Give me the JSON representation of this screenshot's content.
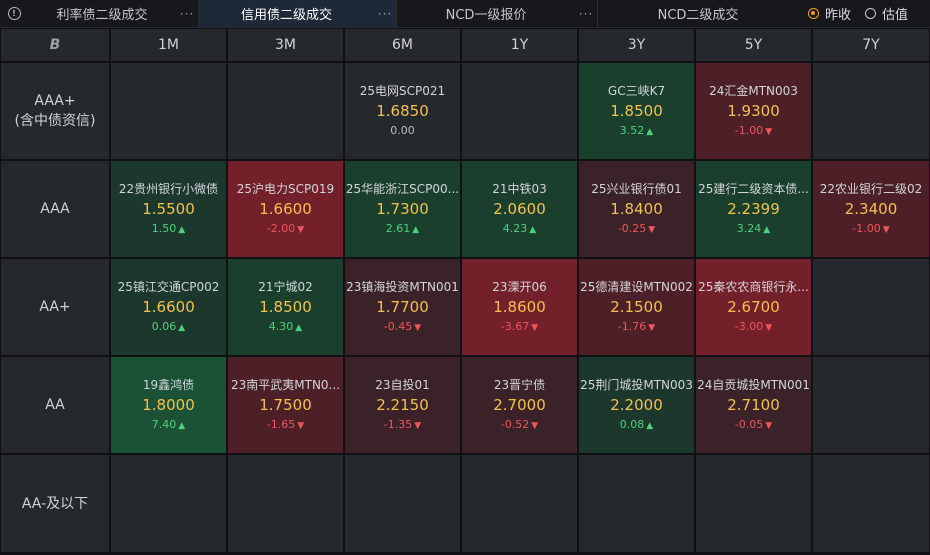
{
  "tabs": [
    {
      "label": "利率债二级成交",
      "more": "···",
      "active": false
    },
    {
      "label": "信用债二级成交",
      "more": "···",
      "active": true
    },
    {
      "label": "NCD一级报价",
      "more": "···",
      "active": false
    },
    {
      "label": "NCD二级成交",
      "more": "",
      "active": false
    }
  ],
  "radio": {
    "option1": "昨收",
    "option2": "估值",
    "selected": "昨收"
  },
  "grid": {
    "corner": "B",
    "columns": [
      "1M",
      "3M",
      "6M",
      "1Y",
      "3Y",
      "5Y",
      "7Y"
    ],
    "rows": [
      {
        "label": "AAA+\n(含中债资信)",
        "cells": [
          null,
          null,
          {
            "name": "25电网SCP021",
            "yield": "1.6850",
            "change": "0.00",
            "dir": "flat",
            "tone": "neutral"
          },
          null,
          {
            "name": "GC三峡K7",
            "yield": "1.8500",
            "change": "3.52",
            "dir": "up",
            "tone": "up"
          },
          {
            "name": "24汇金MTN003",
            "yield": "1.9300",
            "change": "-1.00",
            "dir": "down",
            "tone": "dn"
          },
          null
        ]
      },
      {
        "label": "AAA",
        "cells": [
          {
            "name": "22贵州银行小微债",
            "yield": "1.5500",
            "change": "1.50",
            "dir": "up",
            "tone": "up-mild"
          },
          {
            "name": "25沪电力SCP019",
            "yield": "1.6600",
            "change": "-2.00",
            "dir": "down",
            "tone": "dn-strong"
          },
          {
            "name": "25华能浙江SCP00...",
            "yield": "1.7300",
            "change": "2.61",
            "dir": "up",
            "tone": "up"
          },
          {
            "name": "21中铁03",
            "yield": "2.0600",
            "change": "4.23",
            "dir": "up",
            "tone": "up"
          },
          {
            "name": "25兴业银行债01",
            "yield": "1.8400",
            "change": "-0.25",
            "dir": "down",
            "tone": "dn-mild"
          },
          {
            "name": "25建行二级资本债...",
            "yield": "2.2399",
            "change": "3.24",
            "dir": "up",
            "tone": "up"
          },
          {
            "name": "22农业银行二级02",
            "yield": "2.3400",
            "change": "-1.00",
            "dir": "down",
            "tone": "dn"
          }
        ]
      },
      {
        "label": "AA+",
        "cells": [
          {
            "name": "25镇江交通CP002",
            "yield": "1.6600",
            "change": "0.06",
            "dir": "up",
            "tone": "up-mild"
          },
          {
            "name": "21宁城02",
            "yield": "1.8500",
            "change": "4.30",
            "dir": "up",
            "tone": "up"
          },
          {
            "name": "23镇海投资MTN001",
            "yield": "1.7700",
            "change": "-0.45",
            "dir": "down",
            "tone": "dn-mild"
          },
          {
            "name": "23溧开06",
            "yield": "1.8600",
            "change": "-3.67",
            "dir": "down",
            "tone": "dn-strong"
          },
          {
            "name": "25德清建设MTN002",
            "yield": "2.1500",
            "change": "-1.76",
            "dir": "down",
            "tone": "dn"
          },
          {
            "name": "25秦农农商银行永...",
            "yield": "2.6700",
            "change": "-3.00",
            "dir": "down",
            "tone": "dn-strong"
          },
          null
        ]
      },
      {
        "label": "AA",
        "cells": [
          {
            "name": "19鑫鸿债",
            "yield": "1.8000",
            "change": "7.40",
            "dir": "up",
            "tone": "up-strong"
          },
          {
            "name": "23南平武夷MTN0...",
            "yield": "1.7500",
            "change": "-1.65",
            "dir": "down",
            "tone": "dn"
          },
          {
            "name": "23自投01",
            "yield": "2.2150",
            "change": "-1.35",
            "dir": "down",
            "tone": "dn-mild"
          },
          {
            "name": "23晋宁债",
            "yield": "2.7000",
            "change": "-0.52",
            "dir": "down",
            "tone": "dn-mild"
          },
          {
            "name": "25荆门城投MTN003",
            "yield": "2.2000",
            "change": "0.08",
            "dir": "up",
            "tone": "up-mild"
          },
          {
            "name": "24自贡城投MTN001",
            "yield": "2.7100",
            "change": "-0.05",
            "dir": "down",
            "tone": "dn-mild"
          },
          null
        ]
      },
      {
        "label": "AA-及以下",
        "cells": [
          null,
          null,
          null,
          null,
          null,
          null,
          null
        ]
      }
    ]
  },
  "colors": {
    "up_strong": "#1b5236",
    "up": "#1a3f2d",
    "up_mild": "#1c372c",
    "down_strong": "#74202a",
    "down": "#4d2028",
    "down_mild": "#3a2228",
    "yield": "#f2c14e",
    "positive": "#4cd37a",
    "negative": "#f0545c",
    "accent": "#f0a030"
  },
  "icons": {
    "info": "info-circle-icon",
    "up": "triangle-up-icon",
    "down": "triangle-down-icon"
  }
}
